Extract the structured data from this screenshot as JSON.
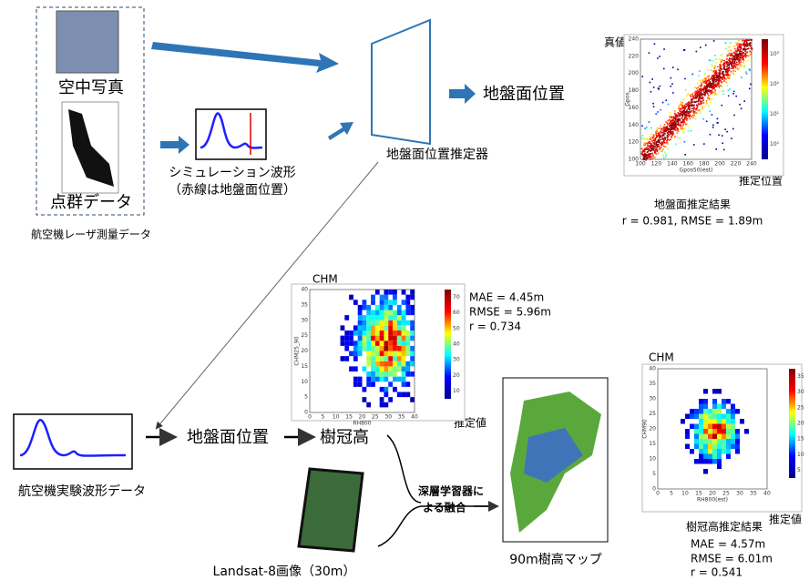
{
  "laser_data": {
    "label": "航空機レーザ測量データ",
    "aerial_photo": "空中写真",
    "point_cloud": "点群データ"
  },
  "simulation": {
    "title": "シミュレーション波形",
    "note": "（赤線は地盤面位置）"
  },
  "estimator": {
    "label": "地盤面位置推定器",
    "output": "地盤面位置"
  },
  "ground_result": {
    "y_label": "真値",
    "x_label": "推定位置",
    "y_axis_title": "Gpos",
    "x_axis_title": "Gpos50(est)",
    "xticks": [
      100,
      120,
      140,
      160,
      180,
      200,
      220,
      240
    ],
    "yticks": [
      100,
      120,
      140,
      160,
      180,
      200,
      220,
      240
    ],
    "colorbar_ticks": [
      "10⁰",
      "10¹",
      "10²",
      "10³"
    ],
    "caption": "地盤面推定結果",
    "stats": "r = 0.981, RMSE = 1.89m"
  },
  "experiment": {
    "waveform": "航空機実験波形データ",
    "ground": "地盤面位置",
    "canopy": "樹冠高"
  },
  "chm_plot": {
    "title": "CHM",
    "x_label": "推定値",
    "y_axis_title": "CHM25_90",
    "x_axis_title": "RH800",
    "xticks": [
      0,
      5,
      10,
      15,
      20,
      25,
      30,
      35,
      40
    ],
    "yticks": [
      0,
      5,
      10,
      15,
      20,
      25,
      30,
      35,
      40
    ],
    "colorbar_ticks": [
      10,
      20,
      30,
      40,
      50,
      60,
      70
    ],
    "stats": [
      "MAE = 4.45m",
      "RMSE = 5.96m",
      "r = 0.734"
    ]
  },
  "fusion": {
    "lines": [
      "深層学習器に",
      "よる融合"
    ]
  },
  "landsat": "Landsat-8画像（30m）",
  "map": "90m樹高マップ",
  "canopy_result": {
    "title": "CHM",
    "x_label": "推定値",
    "y_axis_title": "CHM90",
    "x_axis_title": "RH800(est)",
    "xticks": [
      0,
      5,
      10,
      15,
      20,
      25,
      30,
      35,
      40
    ],
    "yticks": [
      0,
      5,
      10,
      15,
      20,
      25,
      30,
      35,
      40
    ],
    "colorbar_ticks": [
      5,
      10,
      15,
      20,
      25,
      30,
      35
    ],
    "caption": "樹冠高推定結果",
    "stats": [
      "MAE = 4.57m",
      "RMSE = 6.01m",
      "r = 0.541"
    ]
  }
}
